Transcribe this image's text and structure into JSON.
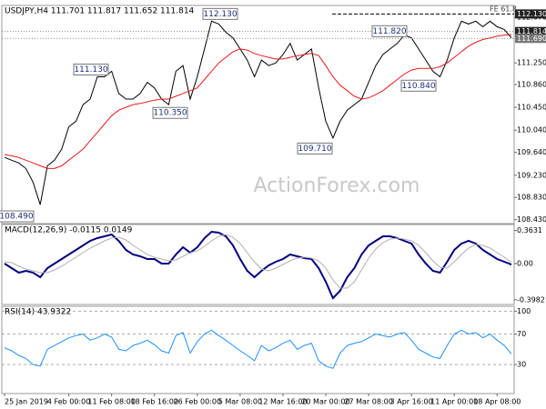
{
  "chart_data": [
    {
      "type": "line",
      "title": "USDJPY,H4  111.701 111.817 111.652 111.814",
      "watermark": "ActionForex.com",
      "annotation": "FE 61.8",
      "ylim": [
        108.36,
        112.25
      ],
      "yticks": [
        {
          "value": 112.07,
          "label": "112.070"
        },
        {
          "value": 111.25,
          "label": "111.250"
        },
        {
          "value": 110.86,
          "label": "110.860"
        },
        {
          "value": 110.45,
          "label": "110.450"
        },
        {
          "value": 110.04,
          "label": "110.040"
        },
        {
          "value": 109.64,
          "label": "109.640"
        },
        {
          "value": 109.23,
          "label": "109.230"
        },
        {
          "value": 108.83,
          "label": "108.830"
        },
        {
          "value": 108.43,
          "label": "108.430"
        }
      ],
      "grid": false,
      "series": [
        {
          "color": "#000000",
          "values": [
            109.55,
            109.5,
            109.45,
            109.35,
            109.1,
            108.7,
            109.4,
            109.5,
            109.7,
            110.1,
            110.2,
            110.5,
            110.6,
            111.0,
            111.0,
            111.1,
            110.7,
            110.6,
            110.6,
            110.7,
            110.9,
            110.8,
            110.6,
            110.5,
            111.1,
            111.2,
            110.6,
            111.0,
            111.5,
            112.0,
            111.95,
            111.8,
            111.7,
            111.5,
            111.3,
            111.0,
            111.3,
            111.2,
            111.25,
            111.4,
            111.6,
            111.3,
            111.4,
            111.5,
            110.8,
            110.2,
            109.9,
            110.2,
            110.4,
            110.5,
            110.6,
            110.9,
            111.2,
            111.4,
            111.5,
            111.6,
            111.75,
            111.7,
            111.5,
            111.3,
            111.1,
            111.0,
            111.3,
            111.7,
            112.0,
            111.95,
            112.0,
            111.9,
            112.0,
            111.9,
            111.85,
            111.7
          ]
        },
        {
          "color": "#e8191d",
          "values": [
            109.6,
            109.58,
            109.55,
            109.5,
            109.45,
            109.4,
            109.35,
            109.35,
            109.4,
            109.5,
            109.6,
            109.7,
            109.85,
            110.0,
            110.15,
            110.3,
            110.4,
            110.45,
            110.5,
            110.52,
            110.55,
            110.58,
            110.6,
            110.6,
            110.65,
            110.7,
            110.75,
            110.8,
            110.95,
            111.1,
            111.25,
            111.35,
            111.45,
            111.5,
            111.48,
            111.42,
            111.38,
            111.35,
            111.32,
            111.32,
            111.35,
            111.38,
            111.4,
            111.42,
            111.38,
            111.2,
            111.0,
            110.85,
            110.75,
            110.65,
            110.6,
            110.62,
            110.68,
            110.75,
            110.85,
            110.95,
            111.05,
            111.12,
            111.15,
            111.15,
            111.15,
            111.18,
            111.25,
            111.35,
            111.45,
            111.55,
            111.62,
            111.67,
            111.7,
            111.73,
            111.75,
            111.76
          ]
        }
      ],
      "price_markers": [
        {
          "value": 112.13,
          "label": "112.130"
        },
        {
          "value": 111.814,
          "label": "111.814"
        },
        {
          "value": 111.69,
          "label": "111.690"
        }
      ],
      "callouts": [
        {
          "value": 112.13,
          "label": "112.130"
        },
        {
          "value": 111.82,
          "label": "111.820"
        },
        {
          "value": 111.13,
          "label": "111.130"
        },
        {
          "value": 110.35,
          "label": "110.350"
        },
        {
          "value": 110.84,
          "label": "110.840"
        },
        {
          "value": 109.71,
          "label": "109.710"
        },
        {
          "value": 108.49,
          "label": "108.490"
        }
      ]
    },
    {
      "type": "line",
      "title": "MACD(12,26,9) -0.0115 0.0149",
      "ylim": [
        -0.45,
        0.41
      ],
      "yticks": [
        0.3631,
        {
          "value": 0,
          "label": "0.00"
        },
        -0.3982
      ],
      "grid": false,
      "series": [
        {
          "color": "#00007f",
          "values": [
            0.0,
            -0.05,
            -0.1,
            -0.08,
            -0.1,
            -0.15,
            -0.05,
            0.0,
            0.05,
            0.1,
            0.15,
            0.2,
            0.25,
            0.28,
            0.3,
            0.32,
            0.25,
            0.15,
            0.1,
            0.08,
            0.05,
            0.05,
            0.0,
            0.0,
            0.1,
            0.18,
            0.12,
            0.18,
            0.28,
            0.35,
            0.34,
            0.3,
            0.2,
            0.05,
            -0.08,
            -0.15,
            -0.08,
            -0.02,
            0.02,
            0.05,
            0.1,
            0.08,
            0.06,
            0.05,
            -0.05,
            -0.2,
            -0.38,
            -0.3,
            -0.15,
            -0.05,
            0.1,
            0.2,
            0.25,
            0.3,
            0.3,
            0.28,
            0.25,
            0.22,
            0.1,
            0.0,
            -0.08,
            -0.1,
            0.02,
            0.15,
            0.22,
            0.25,
            0.22,
            0.15,
            0.1,
            0.05,
            0.02,
            -0.0115
          ]
        },
        {
          "color": "#b0b0b0",
          "values": [
            0.02,
            0.01,
            -0.03,
            -0.06,
            -0.08,
            -0.1,
            -0.1,
            -0.07,
            -0.03,
            0.02,
            0.07,
            0.12,
            0.17,
            0.21,
            0.25,
            0.28,
            0.29,
            0.26,
            0.2,
            0.15,
            0.1,
            0.07,
            0.05,
            0.03,
            0.04,
            0.08,
            0.12,
            0.14,
            0.19,
            0.25,
            0.3,
            0.32,
            0.29,
            0.22,
            0.12,
            0.02,
            -0.06,
            -0.08,
            -0.05,
            -0.01,
            0.03,
            0.06,
            0.07,
            0.06,
            0.03,
            -0.05,
            -0.18,
            -0.27,
            -0.27,
            -0.2,
            -0.07,
            0.06,
            0.16,
            0.23,
            0.27,
            0.28,
            0.27,
            0.25,
            0.2,
            0.12,
            0.03,
            -0.04,
            -0.05,
            0.02,
            0.1,
            0.17,
            0.21,
            0.2,
            0.17,
            0.12,
            0.07,
            0.0149
          ]
        }
      ]
    },
    {
      "type": "line",
      "title": "RSI(14) 43.9322",
      "ylim": [
        -8,
        104
      ],
      "yticks": [
        30,
        70,
        100
      ],
      "grid": true,
      "series": [
        {
          "color": "#1e90ff",
          "values": [
            52,
            48,
            42,
            38,
            30,
            28,
            50,
            55,
            60,
            65,
            68,
            70,
            62,
            65,
            70,
            66,
            50,
            48,
            55,
            58,
            62,
            56,
            48,
            45,
            68,
            72,
            45,
            60,
            70,
            75,
            68,
            62,
            55,
            48,
            42,
            35,
            55,
            48,
            52,
            58,
            62,
            50,
            55,
            58,
            35,
            28,
            25,
            45,
            55,
            58,
            60,
            65,
            70,
            68,
            66,
            70,
            72,
            62,
            50,
            45,
            40,
            38,
            55,
            70,
            75,
            70,
            72,
            65,
            70,
            62,
            55,
            43.9322
          ]
        }
      ],
      "categories": [
        "25 Jan 2019",
        null,
        null,
        null,
        null,
        null,
        null,
        null,
        null,
        "4 Feb 00:00",
        null,
        null,
        null,
        null,
        null,
        "11 Feb 08:00",
        null,
        null,
        null,
        null,
        null,
        "18 Feb 16:00",
        null,
        null,
        null,
        null,
        null,
        "26 Feb 00:00",
        null,
        null,
        null,
        null,
        null,
        "5 Mar 08:00",
        null,
        null,
        null,
        null,
        null,
        "12 Mar 16:00",
        null,
        null,
        null,
        null,
        null,
        "20 Mar 00:00",
        null,
        null,
        null,
        null,
        null,
        "27 Mar 08:00",
        null,
        null,
        null,
        null,
        null,
        "3 Apr 16:00",
        null,
        null,
        null,
        null,
        null,
        "11 Apr 00:00",
        null,
        null,
        null,
        null,
        null,
        "18 Apr 08:00",
        null,
        null
      ]
    }
  ]
}
